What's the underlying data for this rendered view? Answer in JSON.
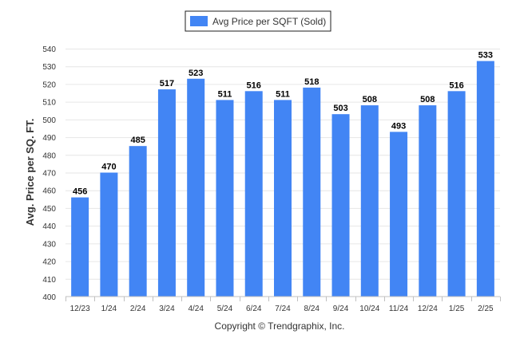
{
  "chart_data": {
    "type": "bar",
    "categories": [
      "12/23",
      "1/24",
      "2/24",
      "3/24",
      "4/24",
      "5/24",
      "6/24",
      "7/24",
      "8/24",
      "9/24",
      "10/24",
      "11/24",
      "12/24",
      "1/25",
      "2/25"
    ],
    "series": [
      {
        "name": "Avg Price per SQFT (Sold)",
        "values": [
          456,
          470,
          485,
          517,
          523,
          511,
          516,
          511,
          518,
          503,
          508,
          493,
          508,
          516,
          533
        ],
        "color": "#4285f4"
      }
    ],
    "ylabel": "Avg. Price per SQ. FT.",
    "xlabel": "",
    "ylim": [
      400,
      540
    ],
    "yticks": [
      400,
      410,
      420,
      430,
      440,
      450,
      460,
      470,
      480,
      490,
      500,
      510,
      520,
      530,
      540
    ],
    "grid": true,
    "legend_position": "top-center",
    "data_labels": true
  },
  "credit": "Copyright © Trendgraphix, Inc."
}
